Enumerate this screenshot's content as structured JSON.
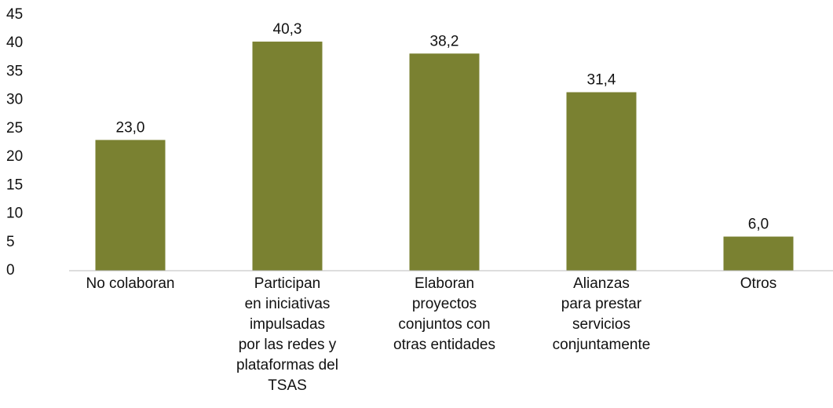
{
  "chart_data": {
    "type": "bar",
    "categories": [
      [
        "No colaboran"
      ],
      [
        "Participan",
        "en iniciativas",
        "impulsadas",
        "por las redes y",
        "plataformas del",
        "TSAS"
      ],
      [
        "Elaboran",
        "proyectos",
        "conjuntos con",
        "otras entidades"
      ],
      [
        "Alianzas",
        "para prestar",
        "servicios",
        "conjuntamente"
      ],
      [
        "Otros"
      ]
    ],
    "values": [
      23.0,
      40.3,
      38.2,
      31.4,
      6.0
    ],
    "value_labels": [
      "23,0",
      "40,3",
      "38,2",
      "31,4",
      "6,0"
    ],
    "color": "#7a8131",
    "ylim": [
      0,
      45
    ],
    "yticks": [
      0,
      5,
      10,
      15,
      20,
      25,
      30,
      35,
      40,
      45
    ],
    "grid": false
  }
}
